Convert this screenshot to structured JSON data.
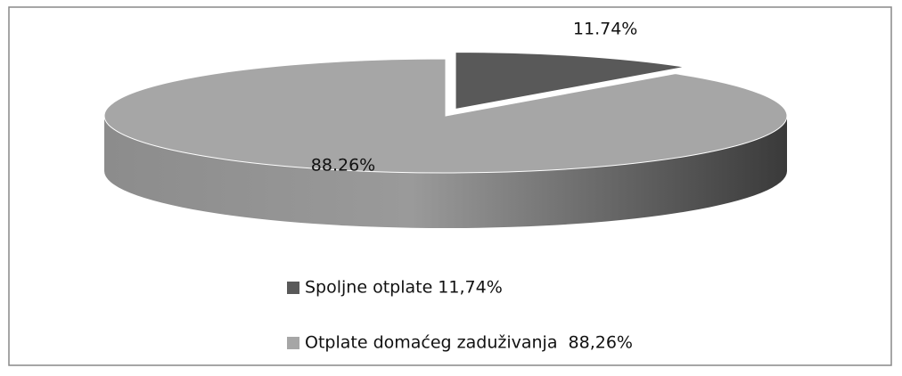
{
  "chart_data": {
    "type": "pie",
    "categories": [
      "Spoljne otplate 11,74%",
      "Otplate domaćeg zaduživanja  88,26%"
    ],
    "values": [
      11.74,
      88.26
    ],
    "value_labels": [
      "11.74%",
      "88.26%"
    ],
    "colors": [
      "#595959",
      "#a6a6a6"
    ],
    "legend": "bottom"
  }
}
